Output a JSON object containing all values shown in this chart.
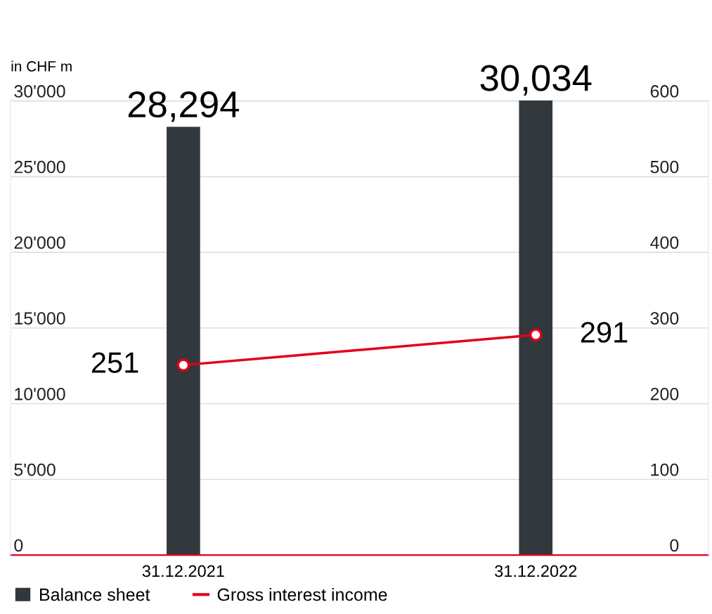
{
  "chart_data": {
    "type": "bar",
    "ylabel": "in CHF m",
    "categories": [
      "31.12.2021",
      "31.12.2022"
    ],
    "series": [
      {
        "name": "Balance sheet",
        "color": "#32383c",
        "values": [
          28294,
          30034
        ],
        "value_labels": [
          "28,294",
          "30,034"
        ]
      },
      {
        "name": "Gross interest income",
        "type": "line",
        "axis": "y2",
        "color": "#e2001a",
        "values": [
          251,
          291
        ],
        "value_labels": [
          "251",
          "291"
        ]
      }
    ],
    "ylim": [
      0,
      30100
    ],
    "yticks": [
      {
        "value": 0,
        "label": "0"
      },
      {
        "value": 5000,
        "label": "5'000"
      },
      {
        "value": 10000,
        "label": "10'000"
      },
      {
        "value": 15000,
        "label": "15'000"
      },
      {
        "value": 20000,
        "label": "20'000"
      },
      {
        "value": 25000,
        "label": "25'000"
      },
      {
        "value": 30000,
        "label": "30'000"
      }
    ],
    "y2lim": [
      0,
      602
    ],
    "y2ticks": [
      0,
      100,
      200,
      300,
      400,
      500,
      600
    ],
    "grid": "y",
    "legend": "bottom left",
    "marker": "circle"
  }
}
